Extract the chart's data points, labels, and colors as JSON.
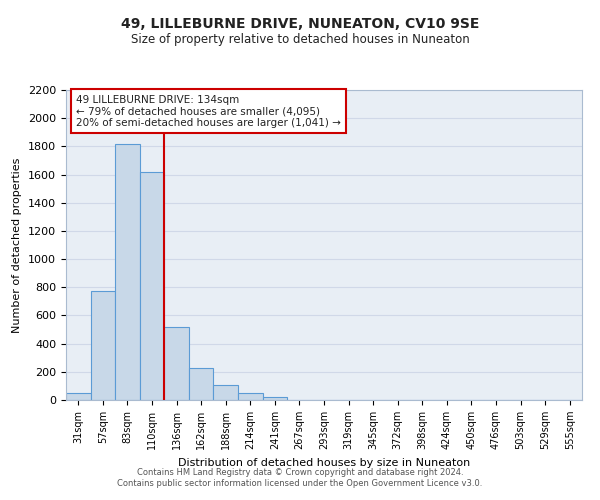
{
  "title": "49, LILLEBURNE DRIVE, NUNEATON, CV10 9SE",
  "subtitle": "Size of property relative to detached houses in Nuneaton",
  "bar_labels": [
    "31sqm",
    "57sqm",
    "83sqm",
    "110sqm",
    "136sqm",
    "162sqm",
    "188sqm",
    "214sqm",
    "241sqm",
    "267sqm",
    "293sqm",
    "319sqm",
    "345sqm",
    "372sqm",
    "398sqm",
    "424sqm",
    "450sqm",
    "476sqm",
    "503sqm",
    "529sqm",
    "555sqm"
  ],
  "bar_values": [
    50,
    775,
    1820,
    1620,
    520,
    230,
    105,
    50,
    20,
    0,
    0,
    0,
    0,
    0,
    0,
    0,
    0,
    0,
    0,
    0,
    0
  ],
  "bar_color": "#c8d8e8",
  "bar_edge_color": "#5b9bd5",
  "vline_x_index": 4,
  "vline_color": "#cc0000",
  "xlabel": "Distribution of detached houses by size in Nuneaton",
  "ylabel": "Number of detached properties",
  "ylim": [
    0,
    2200
  ],
  "yticks": [
    0,
    200,
    400,
    600,
    800,
    1000,
    1200,
    1400,
    1600,
    1800,
    2000,
    2200
  ],
  "annotation_title": "49 LILLEBURNE DRIVE: 134sqm",
  "annotation_line1": "← 79% of detached houses are smaller (4,095)",
  "annotation_line2": "20% of semi-detached houses are larger (1,041) →",
  "annotation_box_color": "#ffffff",
  "annotation_box_edge": "#cc0000",
  "footer_line1": "Contains HM Land Registry data © Crown copyright and database right 2024.",
  "footer_line2": "Contains public sector information licensed under the Open Government Licence v3.0.",
  "grid_color": "#d0d8e8",
  "bg_color": "#e8eef5"
}
